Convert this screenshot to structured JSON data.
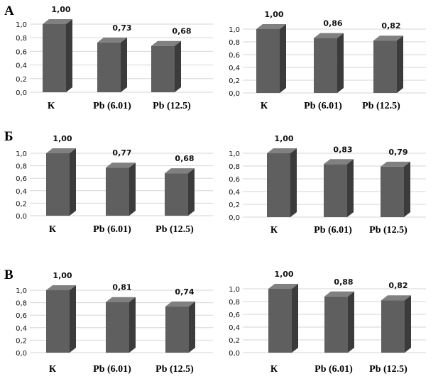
{
  "panels": [
    {
      "letter": "А"
    },
    {
      "letter": "Б"
    },
    {
      "letter": "В"
    }
  ],
  "chart_data": [
    {
      "type": "bar",
      "categories": [
        "К",
        "Pb (6.01)",
        "Pb (12.5)"
      ],
      "values": [
        1.0,
        0.73,
        0.68
      ],
      "value_labels": [
        "1,00",
        "0,73",
        "0,68"
      ],
      "yticks": [
        "0,0",
        "0,2",
        "0,4",
        "0,6",
        "0,8",
        "1,0"
      ],
      "ylim": [
        0,
        1.0
      ],
      "grid": true
    },
    {
      "type": "bar",
      "categories": [
        "К",
        "Pb (6.01)",
        "Pb (12.5)"
      ],
      "values": [
        1.0,
        0.86,
        0.82
      ],
      "value_labels": [
        "1,00",
        "0,86",
        "0,82"
      ],
      "yticks": [
        "0,0",
        "0,2",
        "0,4",
        "0,6",
        "0,8",
        "1,0"
      ],
      "ylim": [
        0,
        1.0
      ],
      "grid": true
    },
    {
      "type": "bar",
      "categories": [
        "К",
        "Pb (6.01)",
        "Pb (12.5)"
      ],
      "values": [
        1.0,
        0.77,
        0.68
      ],
      "value_labels": [
        "1,00",
        "0,77",
        "0,68"
      ],
      "yticks": [
        "0,0",
        "0,2",
        "0,4",
        "0,6",
        "0,8",
        "1,0"
      ],
      "ylim": [
        0,
        1.0
      ],
      "grid": true
    },
    {
      "type": "bar",
      "categories": [
        "К",
        "Pb (6.01)",
        "Pb (12.5)"
      ],
      "values": [
        1.0,
        0.83,
        0.79
      ],
      "value_labels": [
        "1,00",
        "0,83",
        "0,79"
      ],
      "yticks": [
        "0,0",
        "0,2",
        "0,4",
        "0,6",
        "0,8",
        "1,0"
      ],
      "ylim": [
        0,
        1.0
      ],
      "grid": true
    },
    {
      "type": "bar",
      "categories": [
        "К",
        "Pb (6.01)",
        "Pb (12.5)"
      ],
      "values": [
        1.0,
        0.81,
        0.74
      ],
      "value_labels": [
        "1,00",
        "0,81",
        "0,74"
      ],
      "yticks": [
        "0,0",
        "0,2",
        "0,4",
        "0,6",
        "0,8",
        "1,0"
      ],
      "ylim": [
        0,
        1.0
      ],
      "grid": true
    },
    {
      "type": "bar",
      "categories": [
        "К",
        "Pb (6.01)",
        "Pb (12.5)"
      ],
      "values": [
        1.0,
        0.88,
        0.82
      ],
      "value_labels": [
        "1,00",
        "0,88",
        "0,82"
      ],
      "yticks": [
        "0,0",
        "0,2",
        "0,4",
        "0,6",
        "0,8",
        "1,0"
      ],
      "ylim": [
        0,
        1.0
      ],
      "grid": true
    }
  ]
}
